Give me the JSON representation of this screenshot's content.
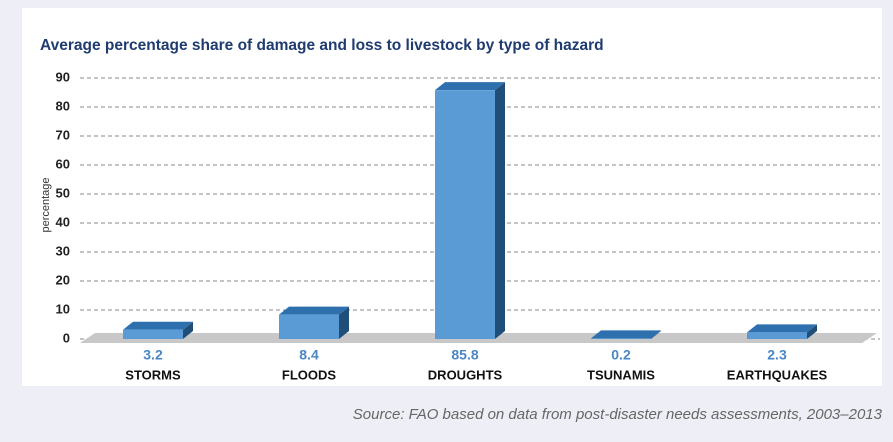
{
  "chart_data": {
    "type": "bar",
    "title": "Average percentage share of damage and loss to livestock by type of hazard",
    "y_label": "percentage",
    "categories": [
      "STORMS",
      "FLOODS",
      "DROUGHTS",
      "TSUNAMIS",
      "EARTHQUAKES"
    ],
    "values": [
      3.2,
      8.4,
      85.8,
      0.2,
      2.3
    ],
    "color": "#5b9bd5",
    "ylim": [
      0,
      90
    ],
    "yticks": [
      0,
      10,
      20,
      30,
      40,
      50,
      60,
      70,
      80,
      90
    ],
    "grid": true,
    "source": "Source: FAO based on data from post-disaster needs assessments, 2003–2013"
  }
}
